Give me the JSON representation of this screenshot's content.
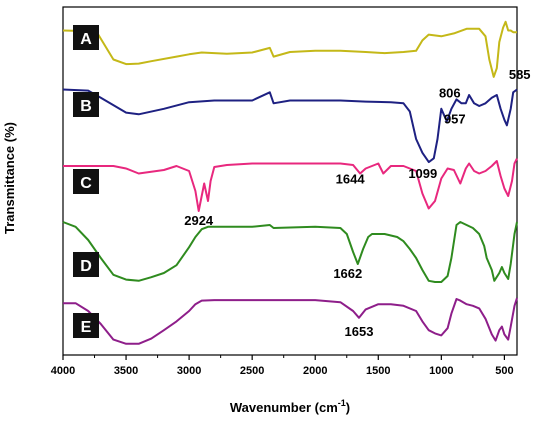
{
  "chart_data": {
    "type": "line",
    "title": "",
    "xlabel": "Wavenumber (cm",
    "xlabel_sup": "-1",
    "xlabel_close": ")",
    "ylabel": "Transmittance (%)",
    "xlim": [
      4000,
      400
    ],
    "x_reversed": true,
    "xticks": [
      4000,
      3500,
      3000,
      2500,
      2000,
      1500,
      1000,
      500
    ],
    "grid": false,
    "series": [
      {
        "name": "A",
        "color": "#c4b818",
        "points": [
          [
            4000,
            0.25
          ],
          [
            3800,
            0.26
          ],
          [
            3720,
            0.32
          ],
          [
            3600,
            0.75
          ],
          [
            3500,
            0.83
          ],
          [
            3400,
            0.82
          ],
          [
            3300,
            0.78
          ],
          [
            3100,
            0.7
          ],
          [
            3000,
            0.66
          ],
          [
            2900,
            0.63
          ],
          [
            2700,
            0.65
          ],
          [
            2500,
            0.63
          ],
          [
            2360,
            0.55
          ],
          [
            2330,
            0.7
          ],
          [
            2200,
            0.62
          ],
          [
            2000,
            0.6
          ],
          [
            1800,
            0.6
          ],
          [
            1600,
            0.62
          ],
          [
            1450,
            0.64
          ],
          [
            1300,
            0.62
          ],
          [
            1200,
            0.6
          ],
          [
            1150,
            0.42
          ],
          [
            1100,
            0.32
          ],
          [
            1000,
            0.35
          ],
          [
            900,
            0.3
          ],
          [
            800,
            0.22
          ],
          [
            700,
            0.22
          ],
          [
            650,
            0.35
          ],
          [
            620,
            0.75
          ],
          [
            585,
            1.05
          ],
          [
            560,
            0.9
          ],
          [
            540,
            0.45
          ],
          [
            510,
            0.2
          ],
          [
            490,
            0.1
          ],
          [
            470,
            0.25
          ],
          [
            450,
            0.25
          ],
          [
            430,
            0.28
          ],
          [
            400,
            0.28
          ]
        ]
      },
      {
        "name": "B",
        "color": "#1e2182",
        "points": [
          [
            4000,
            0.1
          ],
          [
            3800,
            0.12
          ],
          [
            3700,
            0.25
          ],
          [
            3500,
            0.52
          ],
          [
            3400,
            0.55
          ],
          [
            3200,
            0.45
          ],
          [
            3000,
            0.33
          ],
          [
            2800,
            0.3
          ],
          [
            2500,
            0.3
          ],
          [
            2360,
            0.15
          ],
          [
            2330,
            0.35
          ],
          [
            2200,
            0.3
          ],
          [
            2000,
            0.3
          ],
          [
            1800,
            0.3
          ],
          [
            1600,
            0.32
          ],
          [
            1400,
            0.33
          ],
          [
            1300,
            0.35
          ],
          [
            1250,
            0.5
          ],
          [
            1200,
            1.0
          ],
          [
            1150,
            1.25
          ],
          [
            1099,
            1.42
          ],
          [
            1060,
            1.35
          ],
          [
            1030,
            1.0
          ],
          [
            1000,
            0.45
          ],
          [
            957,
            0.68
          ],
          [
            920,
            0.45
          ],
          [
            880,
            0.28
          ],
          [
            840,
            0.35
          ],
          [
            806,
            0.35
          ],
          [
            780,
            0.2
          ],
          [
            740,
            0.35
          ],
          [
            700,
            0.4
          ],
          [
            650,
            0.35
          ],
          [
            600,
            0.25
          ],
          [
            560,
            0.2
          ],
          [
            530,
            0.45
          ],
          [
            500,
            0.65
          ],
          [
            480,
            0.75
          ],
          [
            450,
            0.45
          ],
          [
            430,
            0.15
          ],
          [
            400,
            0.1
          ]
        ]
      },
      {
        "name": "C",
        "color": "#e8287e",
        "points": [
          [
            4000,
            0.2
          ],
          [
            3800,
            0.2
          ],
          [
            3600,
            0.2
          ],
          [
            3500,
            0.25
          ],
          [
            3400,
            0.35
          ],
          [
            3200,
            0.28
          ],
          [
            3100,
            0.2
          ],
          [
            3000,
            0.3
          ],
          [
            2950,
            0.7
          ],
          [
            2924,
            1.1
          ],
          [
            2900,
            0.8
          ],
          [
            2880,
            0.55
          ],
          [
            2850,
            0.9
          ],
          [
            2830,
            0.5
          ],
          [
            2800,
            0.22
          ],
          [
            2700,
            0.18
          ],
          [
            2500,
            0.15
          ],
          [
            2360,
            0.15
          ],
          [
            2000,
            0.15
          ],
          [
            1800,
            0.15
          ],
          [
            1700,
            0.18
          ],
          [
            1644,
            0.35
          ],
          [
            1600,
            0.25
          ],
          [
            1500,
            0.15
          ],
          [
            1460,
            0.35
          ],
          [
            1400,
            0.2
          ],
          [
            1300,
            0.2
          ],
          [
            1200,
            0.3
          ],
          [
            1150,
            0.75
          ],
          [
            1100,
            1.05
          ],
          [
            1050,
            0.9
          ],
          [
            1000,
            0.45
          ],
          [
            950,
            0.25
          ],
          [
            900,
            0.28
          ],
          [
            850,
            0.55
          ],
          [
            806,
            0.25
          ],
          [
            780,
            0.15
          ],
          [
            740,
            0.3
          ],
          [
            700,
            0.35
          ],
          [
            650,
            0.3
          ],
          [
            600,
            0.2
          ],
          [
            560,
            0.1
          ],
          [
            530,
            0.4
          ],
          [
            500,
            0.65
          ],
          [
            470,
            0.8
          ],
          [
            440,
            0.5
          ],
          [
            420,
            0.15
          ],
          [
            400,
            0.05
          ]
        ]
      },
      {
        "name": "D",
        "color": "#2f8b1f",
        "points": [
          [
            4000,
            0.0
          ],
          [
            3900,
            0.08
          ],
          [
            3800,
            0.3
          ],
          [
            3700,
            0.6
          ],
          [
            3600,
            0.88
          ],
          [
            3500,
            0.96
          ],
          [
            3400,
            0.98
          ],
          [
            3300,
            0.92
          ],
          [
            3200,
            0.85
          ],
          [
            3100,
            0.72
          ],
          [
            3000,
            0.42
          ],
          [
            2950,
            0.25
          ],
          [
            2900,
            0.12
          ],
          [
            2850,
            0.08
          ],
          [
            2700,
            0.08
          ],
          [
            2500,
            0.08
          ],
          [
            2360,
            0.05
          ],
          [
            2330,
            0.1
          ],
          [
            2000,
            0.08
          ],
          [
            1800,
            0.1
          ],
          [
            1750,
            0.2
          ],
          [
            1700,
            0.5
          ],
          [
            1662,
            0.7
          ],
          [
            1620,
            0.45
          ],
          [
            1580,
            0.25
          ],
          [
            1550,
            0.2
          ],
          [
            1450,
            0.2
          ],
          [
            1350,
            0.25
          ],
          [
            1300,
            0.32
          ],
          [
            1250,
            0.45
          ],
          [
            1200,
            0.6
          ],
          [
            1150,
            0.8
          ],
          [
            1100,
            0.98
          ],
          [
            1050,
            1.0
          ],
          [
            1000,
            1.0
          ],
          [
            950,
            0.9
          ],
          [
            920,
            0.6
          ],
          [
            880,
            0.05
          ],
          [
            850,
            0.0
          ],
          [
            800,
            0.05
          ],
          [
            750,
            0.1
          ],
          [
            700,
            0.2
          ],
          [
            660,
            0.4
          ],
          [
            640,
            0.6
          ],
          [
            600,
            0.8
          ],
          [
            580,
            0.98
          ],
          [
            540,
            0.85
          ],
          [
            520,
            0.75
          ],
          [
            500,
            0.85
          ],
          [
            470,
            0.95
          ],
          [
            450,
            0.7
          ],
          [
            420,
            0.2
          ],
          [
            400,
            0.0
          ]
        ]
      },
      {
        "name": "E",
        "color": "#8e1e8a",
        "points": [
          [
            4000,
            0.1
          ],
          [
            3900,
            0.1
          ],
          [
            3800,
            0.25
          ],
          [
            3700,
            0.5
          ],
          [
            3600,
            0.8
          ],
          [
            3500,
            0.88
          ],
          [
            3400,
            0.88
          ],
          [
            3300,
            0.78
          ],
          [
            3200,
            0.62
          ],
          [
            3100,
            0.45
          ],
          [
            3000,
            0.25
          ],
          [
            2950,
            0.12
          ],
          [
            2900,
            0.05
          ],
          [
            2800,
            0.04
          ],
          [
            2500,
            0.04
          ],
          [
            2000,
            0.04
          ],
          [
            1800,
            0.08
          ],
          [
            1700,
            0.25
          ],
          [
            1653,
            0.38
          ],
          [
            1600,
            0.22
          ],
          [
            1500,
            0.12
          ],
          [
            1400,
            0.12
          ],
          [
            1300,
            0.15
          ],
          [
            1200,
            0.25
          ],
          [
            1150,
            0.45
          ],
          [
            1100,
            0.62
          ],
          [
            1050,
            0.68
          ],
          [
            1000,
            0.72
          ],
          [
            950,
            0.58
          ],
          [
            920,
            0.3
          ],
          [
            880,
            0.02
          ],
          [
            850,
            0.05
          ],
          [
            800,
            0.12
          ],
          [
            750,
            0.15
          ],
          [
            700,
            0.2
          ],
          [
            650,
            0.4
          ],
          [
            600,
            0.7
          ],
          [
            570,
            0.82
          ],
          [
            540,
            0.62
          ],
          [
            520,
            0.55
          ],
          [
            500,
            0.7
          ],
          [
            470,
            0.8
          ],
          [
            450,
            0.55
          ],
          [
            420,
            0.15
          ],
          [
            400,
            0.0
          ]
        ]
      }
    ],
    "annotations": [
      {
        "text": "585",
        "series": "A",
        "x": 585
      },
      {
        "text": "1099",
        "series": "B",
        "x": 1099
      },
      {
        "text": "957",
        "series": "B",
        "x": 957
      },
      {
        "text": "806",
        "series": "B",
        "x": 806
      },
      {
        "text": "2924",
        "series": "C",
        "x": 2924
      },
      {
        "text": "1644",
        "series": "C",
        "x": 1644
      },
      {
        "text": "1662",
        "series": "D",
        "x": 1662
      },
      {
        "text": "1653",
        "series": "E",
        "x": 1653
      }
    ]
  }
}
